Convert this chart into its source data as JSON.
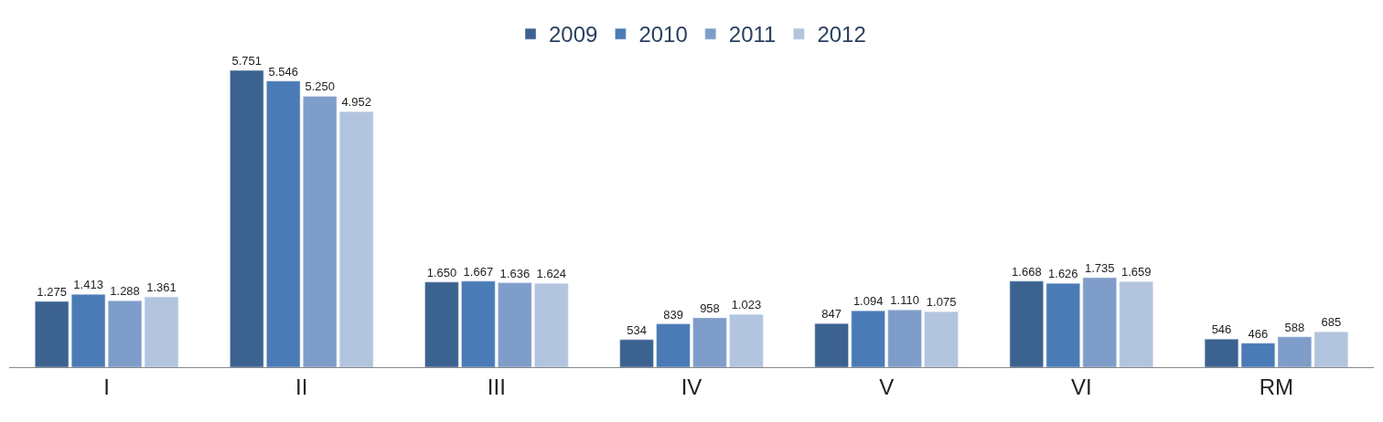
{
  "chart_data": {
    "type": "bar",
    "categories": [
      "I",
      "II",
      "III",
      "IV",
      "V",
      "VI",
      "RM"
    ],
    "series": [
      {
        "name": "2009",
        "color": "#3c6290",
        "values": [
          1275,
          5751,
          1650,
          534,
          847,
          1668,
          546
        ],
        "value_labels": [
          "1.275",
          "5.751",
          "1.650",
          "534",
          "847",
          "1.668",
          "546"
        ]
      },
      {
        "name": "2010",
        "color": "#4a7bb6",
        "values": [
          1413,
          5546,
          1667,
          839,
          1094,
          1626,
          466
        ],
        "value_labels": [
          "1.413",
          "5.546",
          "1.667",
          "839",
          "1.094",
          "1.626",
          "466"
        ]
      },
      {
        "name": "2011",
        "color": "#7f9dc9",
        "values": [
          1288,
          5250,
          1636,
          958,
          1110,
          1735,
          588
        ],
        "value_labels": [
          "1.288",
          "5.250",
          "1.636",
          "958",
          "1.110",
          "1.735",
          "588"
        ]
      },
      {
        "name": "2012",
        "color": "#b3c4de",
        "values": [
          1361,
          4952,
          1624,
          1023,
          1075,
          1659,
          685
        ],
        "value_labels": [
          "1.361",
          "4.952",
          "1.624",
          "1.023",
          "1.075",
          "1.659",
          "685"
        ]
      }
    ],
    "tick_labels": "x",
    "legend": "top"
  }
}
